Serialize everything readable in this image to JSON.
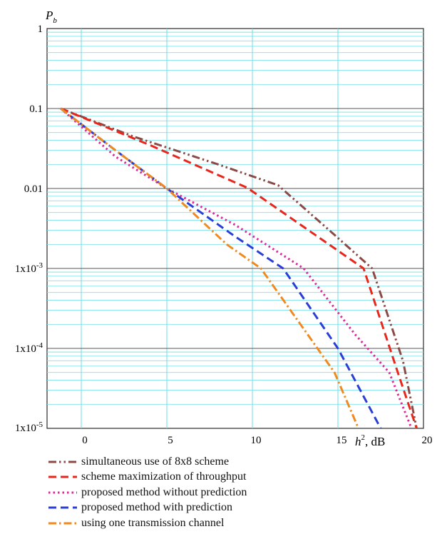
{
  "chart_data": {
    "type": "line",
    "ylabel": "P",
    "ylabel_sub": "b",
    "xlabel_var": "h",
    "xlabel_exp": "2",
    "xlabel_unit": ", dB",
    "y_scale": "log",
    "ylim": [
      1e-05,
      1
    ],
    "xlim": [
      -2,
      20
    ],
    "grid": true,
    "legend_position": "bottom",
    "x_ticks": [
      {
        "value": 0,
        "label": "0"
      },
      {
        "value": 5,
        "label": "5"
      },
      {
        "value": 10,
        "label": "10"
      },
      {
        "value": 15,
        "label": "15"
      },
      {
        "value": 20,
        "label": "20"
      }
    ],
    "y_ticks": [
      {
        "value": 1,
        "label": "1"
      },
      {
        "value": 0.1,
        "label": "0.1"
      },
      {
        "value": 0.01,
        "label": "0.01"
      },
      {
        "value": 0.001,
        "label": "1x10",
        "exp": "-3"
      },
      {
        "value": 0.0001,
        "label": "1x10",
        "exp": "-4"
      },
      {
        "value": 1e-05,
        "label": "1x10",
        "exp": "-5"
      }
    ],
    "series": [
      {
        "name": "simultaneous use of 8x8 scheme",
        "color": "#8b4a45",
        "dash": "dashdotdot",
        "points": [
          [
            -1.2,
            0.1
          ],
          [
            3.0,
            0.045
          ],
          [
            8.0,
            0.02
          ],
          [
            11.5,
            0.011
          ],
          [
            14.5,
            0.003
          ],
          [
            17.0,
            0.001
          ],
          [
            18.8,
            7e-05
          ],
          [
            19.6,
            1e-05
          ]
        ]
      },
      {
        "name": "scheme maximization of throughput",
        "color": "#e8261c",
        "dash": "dash",
        "points": [
          [
            -1.2,
            0.1
          ],
          [
            4.0,
            0.035
          ],
          [
            9.7,
            0.0102
          ],
          [
            16.5,
            0.001
          ],
          [
            18.5,
            5e-05
          ],
          [
            19.6,
            1e-05
          ]
        ]
      },
      {
        "name": "proposed method without prediction",
        "color": "#e0269a",
        "dash": "dot",
        "points": [
          [
            -1.2,
            0.1
          ],
          [
            2.0,
            0.025
          ],
          [
            5.0,
            0.01
          ],
          [
            9.0,
            0.0035
          ],
          [
            13.0,
            0.001
          ],
          [
            16.0,
            0.00015
          ],
          [
            18.0,
            5e-05
          ],
          [
            19.3,
            1e-05
          ]
        ]
      },
      {
        "name": "proposed method with prediction",
        "color": "#2a3ed6",
        "dash": "dash",
        "points": [
          [
            -1.2,
            0.1
          ],
          [
            2.0,
            0.03
          ],
          [
            5.0,
            0.01
          ],
          [
            9.0,
            0.0025
          ],
          [
            11.8,
            0.001
          ],
          [
            15.0,
            0.0001
          ],
          [
            17.5,
            1e-05
          ]
        ]
      },
      {
        "name": "using one transmission channel",
        "color": "#f08a1e",
        "dash": "dashdot",
        "points": [
          [
            -1.2,
            0.1
          ],
          [
            2.0,
            0.03
          ],
          [
            5.0,
            0.01
          ],
          [
            8.5,
            0.002
          ],
          [
            10.5,
            0.001
          ],
          [
            14.8,
            5e-05
          ],
          [
            16.2,
            1e-05
          ]
        ]
      }
    ]
  }
}
